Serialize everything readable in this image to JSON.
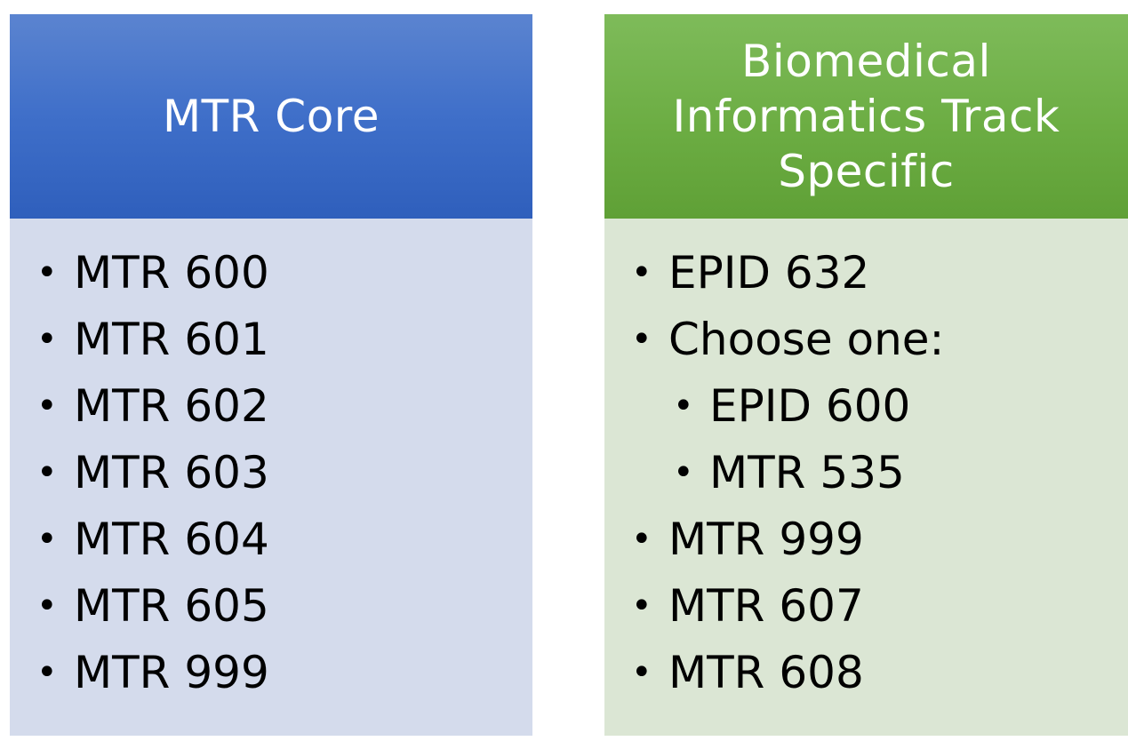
{
  "left_panel": {
    "title": "MTR Core",
    "header_color": "#3f6fc9",
    "body_color": "#d4dbec",
    "items": [
      {
        "label": "MTR 600",
        "level": 1
      },
      {
        "label": "MTR 601",
        "level": 1
      },
      {
        "label": "MTR 602",
        "level": 1
      },
      {
        "label": "MTR 603",
        "level": 1
      },
      {
        "label": "MTR 604",
        "level": 1
      },
      {
        "label": "MTR 605",
        "level": 1
      },
      {
        "label": "MTR 999",
        "level": 1
      }
    ]
  },
  "right_panel": {
    "title": "Biomedical\nInformatics Track\nSpecific",
    "header_color": "#6cad43",
    "body_color": "#dbe6d4",
    "items": [
      {
        "label": "EPID 632",
        "level": 1
      },
      {
        "label": "Choose one:",
        "level": 1
      },
      {
        "label": "EPID 600",
        "level": 2
      },
      {
        "label": "MTR 535",
        "level": 2
      },
      {
        "label": "MTR 999",
        "level": 1
      },
      {
        "label": "MTR 607",
        "level": 1
      },
      {
        "label": "MTR 608",
        "level": 1
      }
    ]
  },
  "bullet_glyph": "•"
}
